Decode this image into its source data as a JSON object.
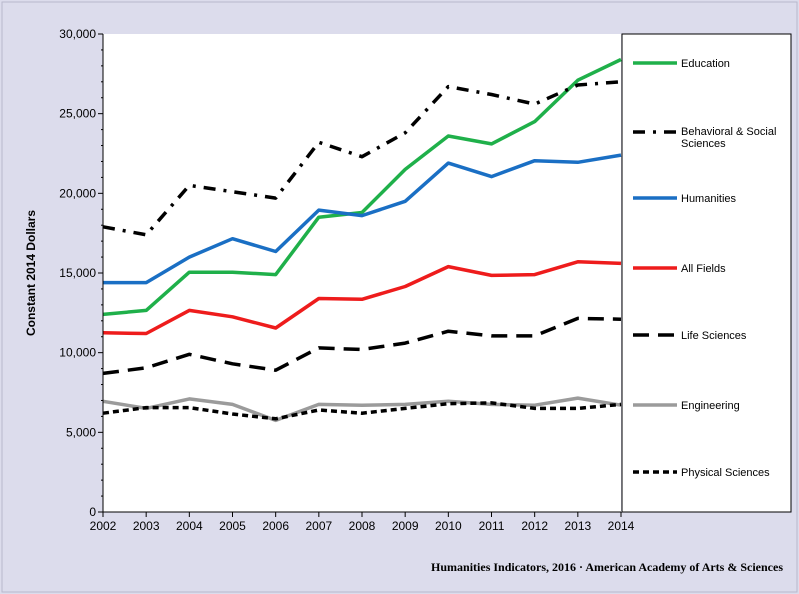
{
  "source_note": "Humanities  Indicators, 2016 · American Academy of Arts & Sciences",
  "chart_data": {
    "type": "line",
    "title": "",
    "xlabel": "",
    "ylabel": "Constant 2014 Dollars",
    "x": [
      2002,
      2003,
      2004,
      2005,
      2006,
      2007,
      2008,
      2009,
      2010,
      2011,
      2012,
      2013,
      2014
    ],
    "ylim": [
      0,
      30000
    ],
    "yticks": [
      0,
      5000,
      10000,
      15000,
      20000,
      25000,
      30000
    ],
    "ytick_labels": [
      "0",
      "5,000",
      "10,000",
      "15,000",
      "20,000",
      "25,000",
      "30,000"
    ],
    "grid": false,
    "legend_position": "right",
    "series": [
      {
        "name": "Education",
        "color": "#1fb04a",
        "dash": "solid",
        "values": [
          12400,
          12650,
          15050,
          15050,
          14900,
          18500,
          18800,
          21500,
          23600,
          23100,
          24500,
          27100,
          28400
        ]
      },
      {
        "name": "Behavioral & Social Sciences",
        "color": "#000000",
        "dash": "dashdot",
        "values": [
          17900,
          17400,
          20500,
          20100,
          19700,
          23200,
          22300,
          23800,
          26700,
          26200,
          25600,
          26800,
          27000
        ]
      },
      {
        "name": "Humanities",
        "color": "#1a6fc4",
        "dash": "solid",
        "values": [
          14400,
          14400,
          16000,
          17150,
          16350,
          18950,
          18600,
          19500,
          21900,
          21050,
          22050,
          21950,
          22400
        ]
      },
      {
        "name": "All Fields",
        "color": "#ee1c1c",
        "dash": "solid",
        "values": [
          11250,
          11200,
          12650,
          12250,
          11550,
          13400,
          13350,
          14150,
          15400,
          14850,
          14900,
          15700,
          15600
        ]
      },
      {
        "name": "Life Sciences",
        "color": "#000000",
        "dash": "longdash",
        "values": [
          8700,
          9050,
          9900,
          9300,
          8900,
          10300,
          10200,
          10600,
          11350,
          11050,
          11050,
          12150,
          12100
        ]
      },
      {
        "name": "Engineering",
        "color": "#9b9b9b",
        "dash": "solid",
        "values": [
          6950,
          6500,
          7100,
          6750,
          5750,
          6750,
          6700,
          6750,
          6950,
          6750,
          6700,
          7150,
          6700
        ]
      },
      {
        "name": "Physical Sciences",
        "color": "#000000",
        "dash": "shortdash",
        "values": [
          6200,
          6550,
          6550,
          6150,
          5850,
          6400,
          6200,
          6500,
          6800,
          6850,
          6500,
          6500,
          6750
        ]
      }
    ]
  }
}
